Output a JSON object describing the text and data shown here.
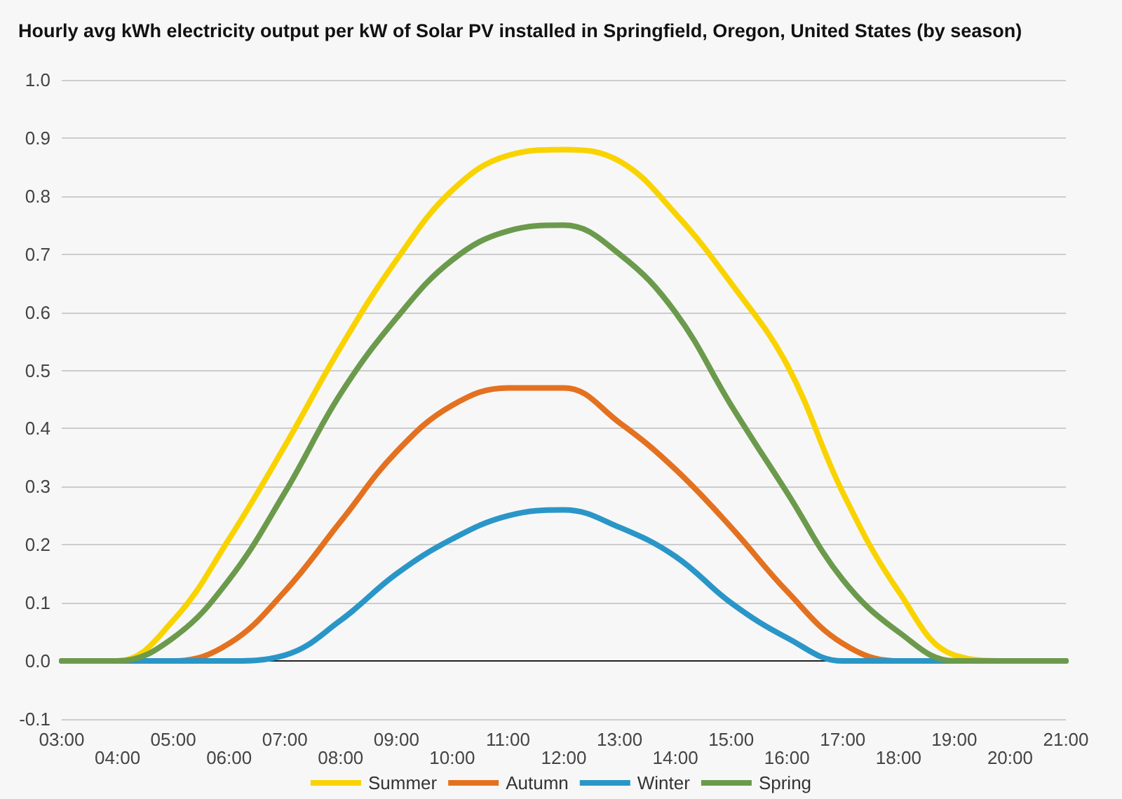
{
  "chart_data": {
    "type": "line",
    "title": "Hourly avg kWh electricity output per kW of Solar PV installed in Springfield, Oregon, United States (by season)",
    "categories": [
      "03:00",
      "04:00",
      "05:00",
      "06:00",
      "07:00",
      "08:00",
      "09:00",
      "10:00",
      "11:00",
      "12:00",
      "13:00",
      "14:00",
      "15:00",
      "16:00",
      "17:00",
      "18:00",
      "19:00",
      "20:00",
      "21:00"
    ],
    "series": [
      {
        "name": "Summer",
        "color": "#f9d300",
        "values": [
          0,
          0,
          0.07,
          0.21,
          0.37,
          0.54,
          0.69,
          0.81,
          0.87,
          0.88,
          0.86,
          0.77,
          0.65,
          0.51,
          0.29,
          0.12,
          0.01,
          0,
          0
        ]
      },
      {
        "name": "Autumn",
        "color": "#e4711f",
        "values": [
          0,
          0,
          0,
          0.03,
          0.12,
          0.24,
          0.36,
          0.44,
          0.47,
          0.47,
          0.41,
          0.33,
          0.23,
          0.12,
          0.03,
          0,
          0,
          null,
          null
        ]
      },
      {
        "name": "Winter",
        "color": "#2a96c8",
        "values": [
          0,
          0,
          0,
          0,
          0.01,
          0.07,
          0.15,
          0.21,
          0.25,
          0.26,
          0.23,
          0.18,
          0.1,
          0.04,
          0,
          0,
          0,
          0,
          0
        ]
      },
      {
        "name": "Spring",
        "color": "#6b9a4c",
        "values": [
          0,
          0,
          0.04,
          0.14,
          0.29,
          0.46,
          0.59,
          0.69,
          0.74,
          0.75,
          0.7,
          0.6,
          0.44,
          0.29,
          0.14,
          0.05,
          0,
          0,
          0
        ]
      }
    ],
    "ylim": [
      -0.1,
      1.0
    ],
    "yticks": [
      {
        "value": -0.1,
        "label": "-0.1"
      },
      {
        "value": 0,
        "label": "0.0"
      },
      {
        "value": 0.1,
        "label": "0.1"
      },
      {
        "value": 0.2,
        "label": "0.2"
      },
      {
        "value": 0.3,
        "label": "0.3"
      },
      {
        "value": 0.4,
        "label": "0.4"
      },
      {
        "value": 0.5,
        "label": "0.5"
      },
      {
        "value": 0.6,
        "label": "0.6"
      },
      {
        "value": 0.7,
        "label": "0.7"
      },
      {
        "value": 0.8,
        "label": "0.8"
      },
      {
        "value": 0.9,
        "label": "0.9"
      },
      {
        "value": 1.0,
        "label": "1.0"
      }
    ],
    "grid": "y",
    "legend": "bottom",
    "marker": "none",
    "line_style": "solid"
  }
}
